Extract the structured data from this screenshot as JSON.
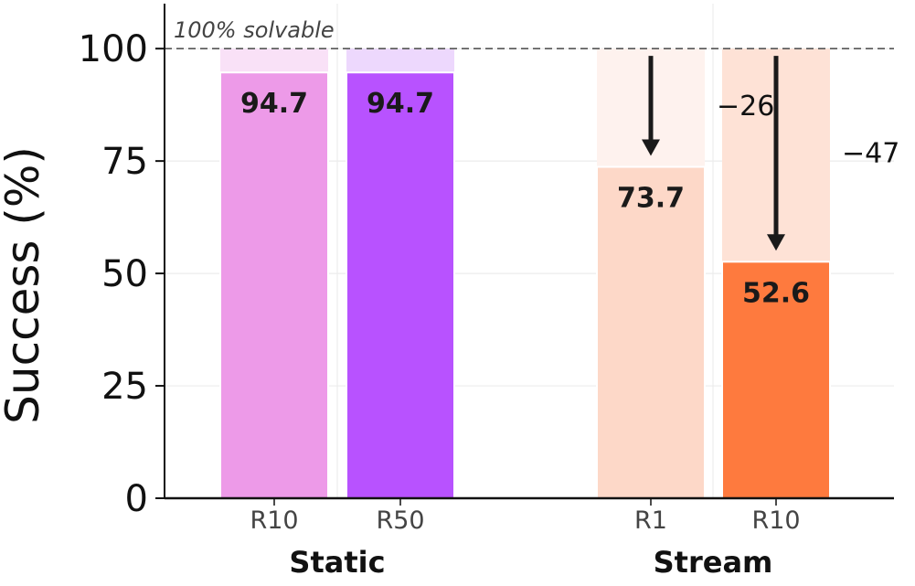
{
  "chart_data": {
    "type": "bar",
    "ylabel": "Success (%)",
    "ylim": [
      0,
      110
    ],
    "yticks": [
      0,
      25,
      50,
      75,
      100
    ],
    "grid": "horizontal",
    "reference_line": {
      "value": 100,
      "label": "100% solvable"
    },
    "groups": [
      {
        "name": "Static",
        "bars": [
          {
            "label": "R10",
            "value": 94.7,
            "value_label": "94.7",
            "color": "#ED9AE8",
            "bg_color": "#F9E1F7"
          },
          {
            "label": "R50",
            "value": 94.7,
            "value_label": "94.7",
            "color": "#B852FF",
            "bg_color": "#EDD8FD"
          }
        ]
      },
      {
        "name": "Stream",
        "bars": [
          {
            "label": "R1",
            "value": 73.7,
            "value_label": "73.7",
            "color": "#FDD8C8",
            "bg_color": "#FEF2EE",
            "drop_label": "−26"
          },
          {
            "label": "R10",
            "value": 52.6,
            "value_label": "52.6",
            "color": "#FE7A3E",
            "bg_color": "#FEE2D6",
            "drop_label": "−47"
          }
        ]
      }
    ]
  }
}
